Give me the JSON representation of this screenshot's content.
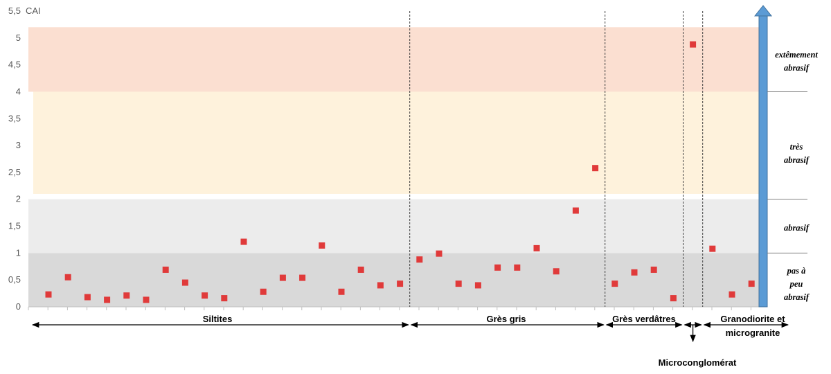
{
  "chart_data": {
    "type": "scatter",
    "ylabel": "CAI",
    "ylim": [
      0,
      5.5
    ],
    "yticks": [
      "0",
      "0,5",
      "1",
      "1,5",
      "2",
      "2,5",
      "3",
      "3,5",
      "4",
      "4,5",
      "5",
      "5,5"
    ],
    "grid": false,
    "marker_color": "#e03a3a",
    "bands": [
      {
        "from": 0,
        "to": 1,
        "color": "#d9d9d9"
      },
      {
        "from": 1,
        "to": 2,
        "color": "#ececec"
      },
      {
        "from": 2.1,
        "to": 4,
        "color": "#fef2dc"
      },
      {
        "from": 4,
        "to": 5.2,
        "color": "#fbdfd1"
      }
    ],
    "series": [
      {
        "values": [
          0.23,
          0.55,
          0.18,
          0.13,
          0.21,
          0.13,
          0.69,
          0.45,
          0.21,
          0.16,
          1.21,
          0.28,
          0.54,
          0.54,
          1.14,
          0.28,
          0.69,
          0.4,
          0.43,
          0.88,
          0.99,
          0.43,
          0.4,
          0.73,
          0.73,
          1.09,
          0.66,
          1.79,
          2.58,
          0.43,
          0.64,
          0.69,
          0.16,
          4.88,
          1.08,
          0.23,
          0.43
        ]
      }
    ],
    "groups": [
      {
        "label": "Siltites",
        "count": 19
      },
      {
        "label": "Grès gris",
        "count": 10
      },
      {
        "label": "Grès verdâtres",
        "count": 4
      },
      {
        "label": "Microconglomérat",
        "count": 1
      },
      {
        "label": "Granodiorite et",
        "label2": "microgranite",
        "count": 3
      }
    ],
    "classes": [
      {
        "line1": "extêmement",
        "line2": "abrasif",
        "line3": ""
      },
      {
        "line1": "très",
        "line2": "abrasif",
        "line3": ""
      },
      {
        "line1": "abrasif",
        "line2": "",
        "line3": ""
      },
      {
        "line1": "pas à",
        "line2": "peu",
        "line3": "abrasif"
      }
    ],
    "arrow_color": "#5b9bd5"
  }
}
